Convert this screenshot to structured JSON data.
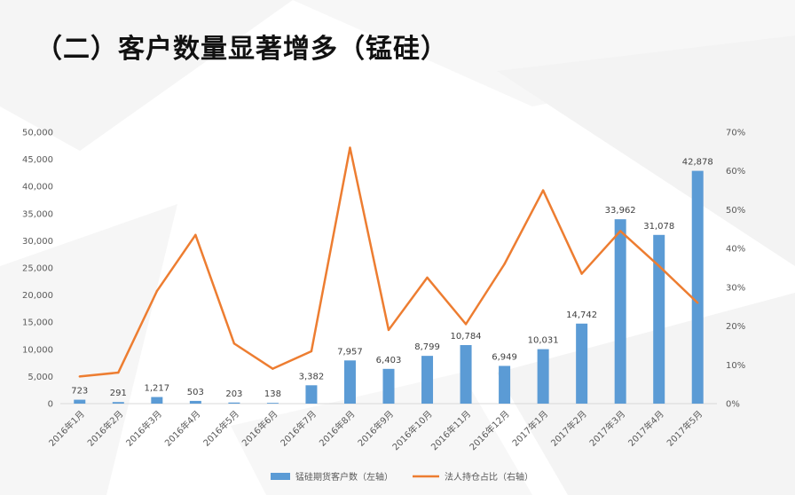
{
  "page": {
    "title": "（二）客户数量显著增多（锰硅）"
  },
  "colors": {
    "bar": "#5b9bd5",
    "line": "#ed7d31",
    "axis": "#d9d9d9",
    "text": "#595959"
  },
  "chart_data": {
    "type": "bar",
    "categories": [
      "2016年1月",
      "2016年2月",
      "2016年3月",
      "2016年4月",
      "2016年5月",
      "2016年6月",
      "2016年7月",
      "2016年8月",
      "2016年9月",
      "2016年10月",
      "2016年11月",
      "2016年12月",
      "2017年1月",
      "2017年2月",
      "2017年3月",
      "2017年4月",
      "2017年5月"
    ],
    "series": [
      {
        "name": "锰硅期货客户数（左轴）",
        "type": "bar",
        "axis": "left",
        "values": [
          723,
          291,
          1217,
          503,
          203,
          138,
          3382,
          7957,
          6403,
          8799,
          10784,
          6949,
          10031,
          14742,
          33962,
          31078,
          42878
        ],
        "labels": [
          "723",
          "291",
          "1,217",
          "503",
          "203",
          "138",
          "3,382",
          "7,957",
          "6,403",
          "8,799",
          "10,784",
          "6,949",
          "10,031",
          "14,742",
          "33,962",
          "31,078",
          "42,878"
        ]
      },
      {
        "name": "法人持仓占比（右轴）",
        "type": "line",
        "axis": "right",
        "values": [
          7,
          8,
          29,
          43.5,
          15.5,
          9,
          13.5,
          66,
          19,
          32.5,
          20.5,
          36,
          55,
          33.5,
          44.5,
          35.5,
          26
        ]
      }
    ],
    "left_axis": {
      "min": 0,
      "max": 50000,
      "ticks": [
        "0",
        "5,000",
        "10,000",
        "15,000",
        "20,000",
        "25,000",
        "30,000",
        "35,000",
        "40,000",
        "45,000",
        "50,000"
      ]
    },
    "right_axis": {
      "min": 0,
      "max": 70,
      "ticks": [
        "0%",
        "10%",
        "20%",
        "30%",
        "40%",
        "50%",
        "60%",
        "70%"
      ]
    },
    "legend": {
      "position": "bottom"
    },
    "grid": false
  }
}
